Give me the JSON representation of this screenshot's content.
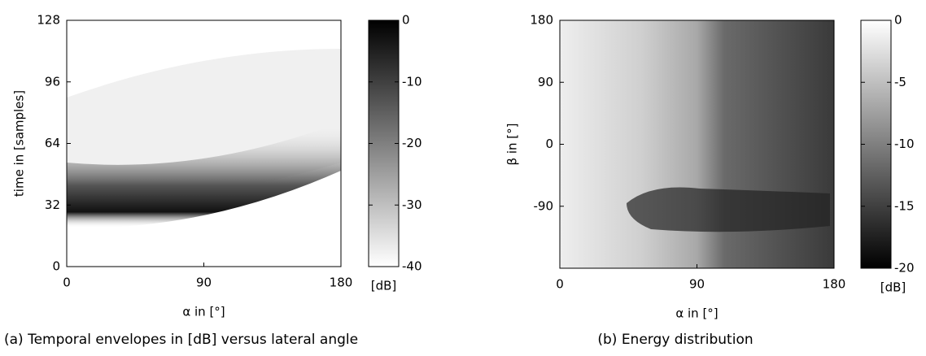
{
  "chart_data": [
    {
      "type": "heatmap",
      "ylabel": "time in [samples]",
      "xlabel": "α in [°]",
      "caption": "(a) Temporal envelopes in [dB] versus lateral angle",
      "xlim": [
        0,
        180
      ],
      "xticks": [
        0,
        90,
        180
      ],
      "ylim": [
        0,
        128
      ],
      "yticks": [
        0,
        32,
        64,
        96,
        128
      ],
      "colorbar": {
        "lim": [
          -40,
          0
        ],
        "ticks": [
          0,
          -10,
          -20,
          -30,
          -40
        ],
        "label": "[dB]"
      }
    },
    {
      "type": "heatmap",
      "ylabel": "β in [°]",
      "xlabel": "α in [°]",
      "caption": "(b) Energy distribution",
      "xlim": [
        0,
        180
      ],
      "xticks": [
        0,
        90,
        180
      ],
      "ylim": [
        -180,
        180
      ],
      "yticks": [
        -90,
        0,
        90,
        180
      ],
      "colorbar": {
        "lim": [
          -20,
          0
        ],
        "ticks": [
          0,
          -5,
          -10,
          -15,
          -20
        ],
        "label": "[dB]"
      }
    }
  ]
}
